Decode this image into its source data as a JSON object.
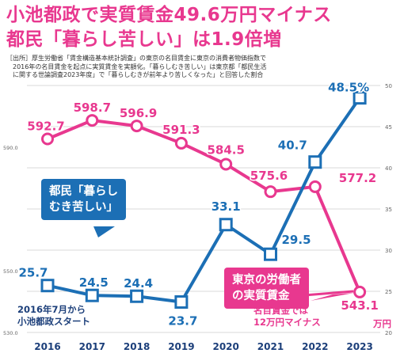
{
  "title": {
    "line1": "小池都政で実質賃金49.6万円マイナス",
    "line2": "都民「暮らし苦しい」は1.9倍増"
  },
  "source": {
    "lines": [
      "［出所］厚生労働省「賃金構造基本統計調査」の東京の名目賃金に東京の消費者物価指数で",
      "　2016年の名目賃金を起点に実質賃金を実額化。「暮らしむき苦しい」は東京都「都民生活",
      "　に関する世論調査2023年度」で「暮らしむきが前年より苦しくなった」と回答した割合"
    ]
  },
  "callouts": {
    "blue": [
      "都民「暮らし",
      "むき苦しい」"
    ],
    "pink": [
      "東京の労働者",
      "の実質賃金"
    ]
  },
  "notes": {
    "blue": [
      "2016年7月から",
      "小池都政スタート"
    ],
    "pink": [
      "名目賃金では",
      "12万円マイナス"
    ],
    "unit": "万円"
  },
  "chart_data": {
    "type": "line",
    "title": "小池都政で実質賃金49.6万円マイナス",
    "categories": [
      "2016",
      "2017",
      "2018",
      "2019",
      "2020",
      "2021",
      "2022",
      "2023"
    ],
    "series": [
      {
        "name": "東京の労働者の実質賃金",
        "axis": "left",
        "unit": "万円",
        "color": "#e8388f",
        "values": [
          592.7,
          598.7,
          596.9,
          591.3,
          584.5,
          575.6,
          577.2,
          543.1
        ],
        "labels": [
          "592.7",
          "598.7",
          "596.9",
          "591.3",
          "584.5",
          "575.6",
          "577.2",
          "543.1"
        ]
      },
      {
        "name": "都民「暮らしむき苦しい」",
        "axis": "right",
        "unit": "%",
        "color": "#1c6fb5",
        "values": [
          25.7,
          24.5,
          24.4,
          23.7,
          33.1,
          29.5,
          40.7,
          48.5
        ],
        "labels": [
          "25.7",
          "24.5",
          "24.4",
          "23.7",
          "33.1",
          "29.5",
          "40.7",
          "48.5%"
        ]
      }
    ],
    "left_axis": {
      "range": [
        530,
        610
      ],
      "ticks": [
        "530.0",
        "550.0",
        "590.0"
      ]
    },
    "right_axis": {
      "range": [
        20,
        50
      ],
      "ticks": [
        "20",
        "25",
        "30",
        "35",
        "40",
        "45",
        "50"
      ]
    },
    "grid": true
  }
}
